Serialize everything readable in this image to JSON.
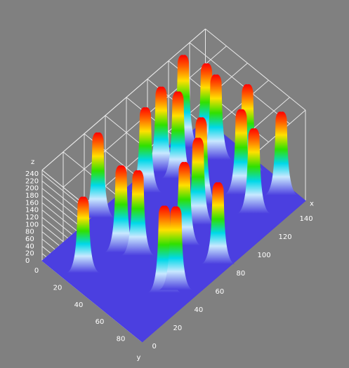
{
  "chart_data": {
    "type": "surface3d",
    "x_label": "x",
    "y_label": "y",
    "z_label": "z",
    "xlim": [
      0,
      155
    ],
    "ylim": [
      0,
      95
    ],
    "zlim": [
      0,
      250
    ],
    "xticks": [
      0,
      20,
      40,
      60,
      80,
      100,
      120,
      140
    ],
    "yticks": [
      0,
      20,
      40,
      60,
      80
    ],
    "zticks": [
      0,
      20,
      40,
      60,
      80,
      100,
      120,
      140,
      160,
      180,
      200,
      220,
      240
    ],
    "x": [
      129,
      138,
      137,
      145,
      105,
      109,
      86,
      147,
      129,
      105,
      50,
      124,
      92,
      74,
      41,
      47,
      79,
      12,
      38,
      45
    ],
    "y": [
      5,
      18,
      28,
      50,
      8,
      20,
      12,
      80,
      60,
      46,
      3,
      77,
      56,
      61,
      34,
      44,
      88,
      27,
      78,
      82
    ],
    "z": [
      255,
      240,
      235,
      240,
      235,
      240,
      235,
      230,
      235,
      240,
      235,
      235,
      240,
      230,
      240,
      235,
      225,
      210,
      240,
      230
    ],
    "floor_color": "#4b3fe0",
    "grid": true
  }
}
